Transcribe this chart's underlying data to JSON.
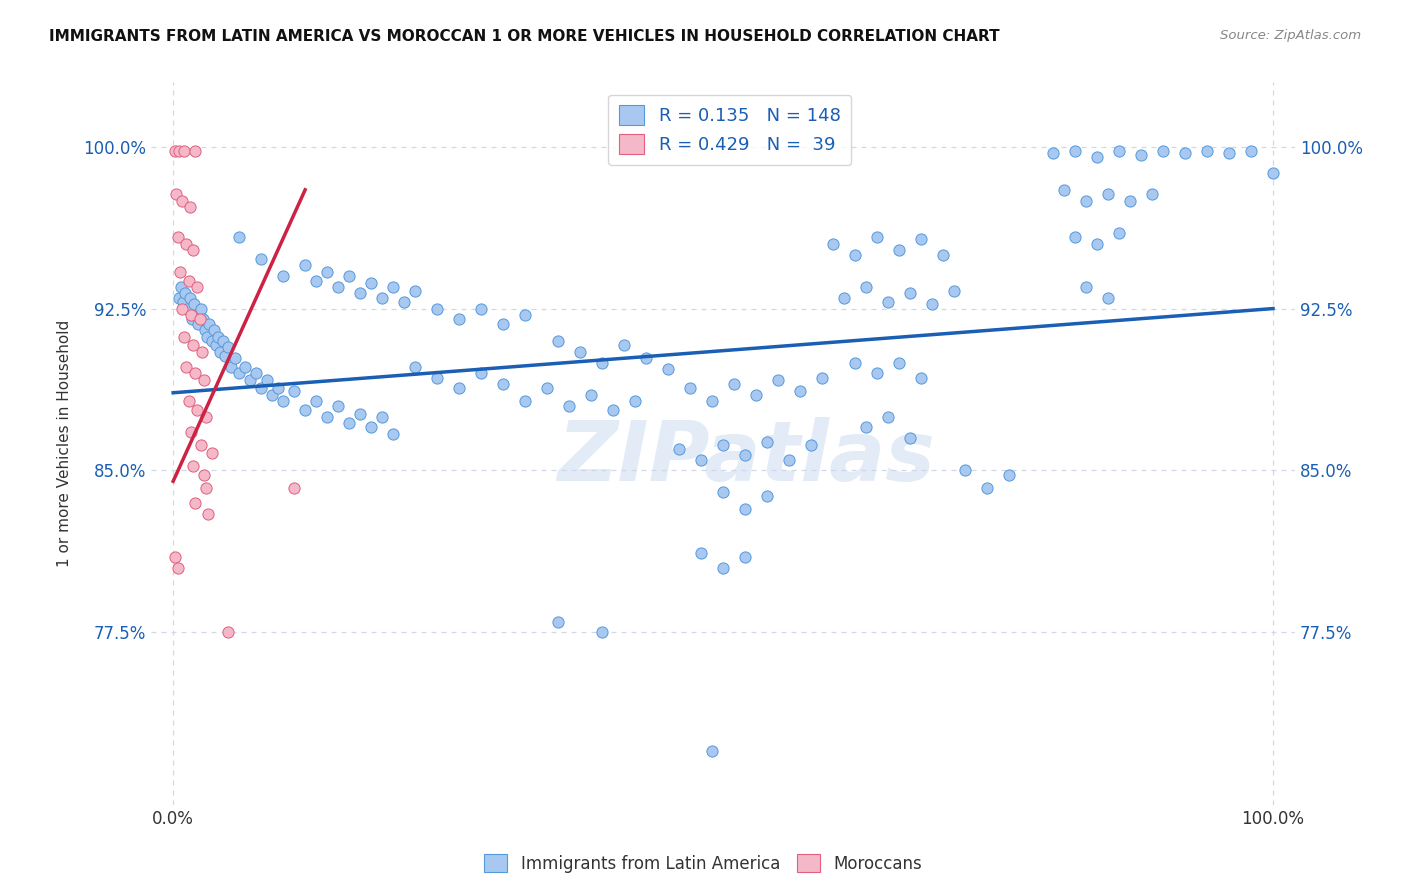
{
  "title": "IMMIGRANTS FROM LATIN AMERICA VS MOROCCAN 1 OR MORE VEHICLES IN HOUSEHOLD CORRELATION CHART",
  "source": "Source: ZipAtlas.com",
  "ylabel": "1 or more Vehicles in Household",
  "xlim": [
    -0.02,
    1.02
  ],
  "ylim": [
    0.695,
    1.03
  ],
  "xtick_labels": [
    "0.0%",
    "100.0%"
  ],
  "ytick_labels": [
    "77.5%",
    "85.0%",
    "92.5%",
    "100.0%"
  ],
  "ytick_values": [
    0.775,
    0.85,
    0.925,
    1.0
  ],
  "xtick_values": [
    0.0,
    1.0
  ],
  "watermark": "ZIPatlas",
  "legend_blue_R": "0.135",
  "legend_blue_N": "148",
  "legend_pink_R": "0.429",
  "legend_pink_N": " 39",
  "blue_color": "#a8c8f0",
  "pink_color": "#f4b8c8",
  "blue_edge_color": "#5599dd",
  "pink_edge_color": "#e06080",
  "blue_line_color": "#1a5fb4",
  "pink_line_color": "#cc2244",
  "blue_trend": [
    0.0,
    0.886,
    1.0,
    0.925
  ],
  "pink_trend": [
    0.0,
    0.845,
    0.12,
    0.98
  ],
  "blue_scatter": [
    [
      0.005,
      0.93
    ],
    [
      0.007,
      0.935
    ],
    [
      0.009,
      0.928
    ],
    [
      0.011,
      0.932
    ],
    [
      0.013,
      0.925
    ],
    [
      0.015,
      0.93
    ],
    [
      0.017,
      0.92
    ],
    [
      0.019,
      0.927
    ],
    [
      0.021,
      0.922
    ],
    [
      0.023,
      0.918
    ],
    [
      0.025,
      0.925
    ],
    [
      0.027,
      0.92
    ],
    [
      0.029,
      0.915
    ],
    [
      0.031,
      0.912
    ],
    [
      0.033,
      0.918
    ],
    [
      0.035,
      0.91
    ],
    [
      0.037,
      0.915
    ],
    [
      0.039,
      0.908
    ],
    [
      0.041,
      0.912
    ],
    [
      0.043,
      0.905
    ],
    [
      0.045,
      0.91
    ],
    [
      0.047,
      0.903
    ],
    [
      0.05,
      0.907
    ],
    [
      0.053,
      0.898
    ],
    [
      0.056,
      0.902
    ],
    [
      0.06,
      0.895
    ],
    [
      0.065,
      0.898
    ],
    [
      0.07,
      0.892
    ],
    [
      0.075,
      0.895
    ],
    [
      0.08,
      0.888
    ],
    [
      0.085,
      0.892
    ],
    [
      0.09,
      0.885
    ],
    [
      0.095,
      0.888
    ],
    [
      0.1,
      0.882
    ],
    [
      0.11,
      0.887
    ],
    [
      0.12,
      0.878
    ],
    [
      0.13,
      0.882
    ],
    [
      0.14,
      0.875
    ],
    [
      0.15,
      0.88
    ],
    [
      0.16,
      0.872
    ],
    [
      0.17,
      0.876
    ],
    [
      0.18,
      0.87
    ],
    [
      0.19,
      0.875
    ],
    [
      0.2,
      0.867
    ],
    [
      0.06,
      0.958
    ],
    [
      0.08,
      0.948
    ],
    [
      0.1,
      0.94
    ],
    [
      0.12,
      0.945
    ],
    [
      0.13,
      0.938
    ],
    [
      0.14,
      0.942
    ],
    [
      0.15,
      0.935
    ],
    [
      0.16,
      0.94
    ],
    [
      0.17,
      0.932
    ],
    [
      0.18,
      0.937
    ],
    [
      0.19,
      0.93
    ],
    [
      0.2,
      0.935
    ],
    [
      0.21,
      0.928
    ],
    [
      0.22,
      0.933
    ],
    [
      0.24,
      0.925
    ],
    [
      0.26,
      0.92
    ],
    [
      0.28,
      0.925
    ],
    [
      0.3,
      0.918
    ],
    [
      0.32,
      0.922
    ],
    [
      0.22,
      0.898
    ],
    [
      0.24,
      0.893
    ],
    [
      0.26,
      0.888
    ],
    [
      0.28,
      0.895
    ],
    [
      0.3,
      0.89
    ],
    [
      0.32,
      0.882
    ],
    [
      0.34,
      0.888
    ],
    [
      0.36,
      0.88
    ],
    [
      0.38,
      0.885
    ],
    [
      0.4,
      0.878
    ],
    [
      0.42,
      0.882
    ],
    [
      0.35,
      0.91
    ],
    [
      0.37,
      0.905
    ],
    [
      0.39,
      0.9
    ],
    [
      0.41,
      0.908
    ],
    [
      0.43,
      0.902
    ],
    [
      0.45,
      0.897
    ],
    [
      0.46,
      0.86
    ],
    [
      0.48,
      0.855
    ],
    [
      0.5,
      0.862
    ],
    [
      0.52,
      0.857
    ],
    [
      0.54,
      0.863
    ],
    [
      0.56,
      0.855
    ],
    [
      0.58,
      0.862
    ],
    [
      0.47,
      0.888
    ],
    [
      0.49,
      0.882
    ],
    [
      0.51,
      0.89
    ],
    [
      0.53,
      0.885
    ],
    [
      0.55,
      0.892
    ],
    [
      0.57,
      0.887
    ],
    [
      0.59,
      0.893
    ],
    [
      0.5,
      0.84
    ],
    [
      0.52,
      0.832
    ],
    [
      0.54,
      0.838
    ],
    [
      0.48,
      0.812
    ],
    [
      0.5,
      0.805
    ],
    [
      0.52,
      0.81
    ],
    [
      0.6,
      0.955
    ],
    [
      0.62,
      0.95
    ],
    [
      0.64,
      0.958
    ],
    [
      0.66,
      0.952
    ],
    [
      0.68,
      0.957
    ],
    [
      0.7,
      0.95
    ],
    [
      0.61,
      0.93
    ],
    [
      0.63,
      0.935
    ],
    [
      0.65,
      0.928
    ],
    [
      0.67,
      0.932
    ],
    [
      0.69,
      0.927
    ],
    [
      0.71,
      0.933
    ],
    [
      0.62,
      0.9
    ],
    [
      0.64,
      0.895
    ],
    [
      0.66,
      0.9
    ],
    [
      0.68,
      0.893
    ],
    [
      0.63,
      0.87
    ],
    [
      0.65,
      0.875
    ],
    [
      0.67,
      0.865
    ],
    [
      0.72,
      0.85
    ],
    [
      0.74,
      0.842
    ],
    [
      0.76,
      0.848
    ],
    [
      0.8,
      0.997
    ],
    [
      0.82,
      0.998
    ],
    [
      0.84,
      0.995
    ],
    [
      0.86,
      0.998
    ],
    [
      0.88,
      0.996
    ],
    [
      0.9,
      0.998
    ],
    [
      0.92,
      0.997
    ],
    [
      0.94,
      0.998
    ],
    [
      0.96,
      0.997
    ],
    [
      0.98,
      0.998
    ],
    [
      0.81,
      0.98
    ],
    [
      0.83,
      0.975
    ],
    [
      0.85,
      0.978
    ],
    [
      0.87,
      0.975
    ],
    [
      0.89,
      0.978
    ],
    [
      0.82,
      0.958
    ],
    [
      0.84,
      0.955
    ],
    [
      0.86,
      0.96
    ],
    [
      0.83,
      0.935
    ],
    [
      0.85,
      0.93
    ],
    [
      1.0,
      0.988
    ],
    [
      0.35,
      0.78
    ],
    [
      0.39,
      0.775
    ],
    [
      0.49,
      0.72
    ]
  ],
  "pink_scatter": [
    [
      0.002,
      0.998
    ],
    [
      0.005,
      0.998
    ],
    [
      0.01,
      0.998
    ],
    [
      0.02,
      0.998
    ],
    [
      0.003,
      0.978
    ],
    [
      0.008,
      0.975
    ],
    [
      0.015,
      0.972
    ],
    [
      0.004,
      0.958
    ],
    [
      0.012,
      0.955
    ],
    [
      0.018,
      0.952
    ],
    [
      0.006,
      0.942
    ],
    [
      0.014,
      0.938
    ],
    [
      0.022,
      0.935
    ],
    [
      0.008,
      0.925
    ],
    [
      0.016,
      0.922
    ],
    [
      0.024,
      0.92
    ],
    [
      0.01,
      0.912
    ],
    [
      0.018,
      0.908
    ],
    [
      0.026,
      0.905
    ],
    [
      0.012,
      0.898
    ],
    [
      0.02,
      0.895
    ],
    [
      0.028,
      0.892
    ],
    [
      0.014,
      0.882
    ],
    [
      0.022,
      0.878
    ],
    [
      0.03,
      0.875
    ],
    [
      0.016,
      0.868
    ],
    [
      0.025,
      0.862
    ],
    [
      0.035,
      0.858
    ],
    [
      0.018,
      0.852
    ],
    [
      0.028,
      0.848
    ],
    [
      0.02,
      0.835
    ],
    [
      0.032,
      0.83
    ],
    [
      0.002,
      0.81
    ],
    [
      0.004,
      0.805
    ],
    [
      0.03,
      0.842
    ],
    [
      0.11,
      0.842
    ],
    [
      0.05,
      0.775
    ]
  ],
  "grid_color": "#d0d8e8",
  "background_color": "#ffffff",
  "marker_size": 65
}
